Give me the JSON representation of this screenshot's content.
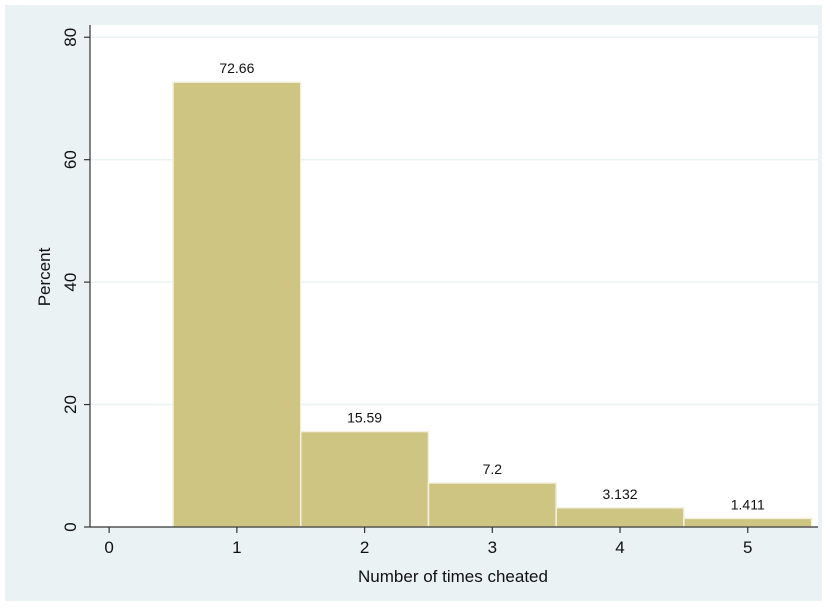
{
  "colors": {
    "panel_background": "#eaf2f3",
    "plot_background": "#ffffff",
    "bar_fill": "#cfc583",
    "bar_edge": "#f4f1df",
    "gridline": "#eaf2f3",
    "axis": "#333333"
  },
  "chart_data": {
    "type": "bar",
    "title": "",
    "xlabel": "Number of times cheated",
    "ylabel": "Percent",
    "categories": [
      1,
      2,
      3,
      4,
      5
    ],
    "values": [
      72.66,
      15.59,
      7.2,
      3.132,
      1.411
    ],
    "value_labels": [
      "72.66",
      "15.59",
      "7.2",
      "3.132",
      "1.411"
    ],
    "bin_width": 1,
    "xlim": [
      -0.15,
      5.55
    ],
    "ylim": [
      0,
      82
    ],
    "xticks": [
      0,
      1,
      2,
      3,
      4,
      5
    ],
    "xtick_labels": [
      "0",
      "1",
      "2",
      "3",
      "4",
      "5"
    ],
    "yticks": [
      0,
      20,
      40,
      60,
      80
    ],
    "ytick_labels": [
      "0",
      "20",
      "40",
      "60",
      "80"
    ],
    "grid": true,
    "legend": "none"
  }
}
